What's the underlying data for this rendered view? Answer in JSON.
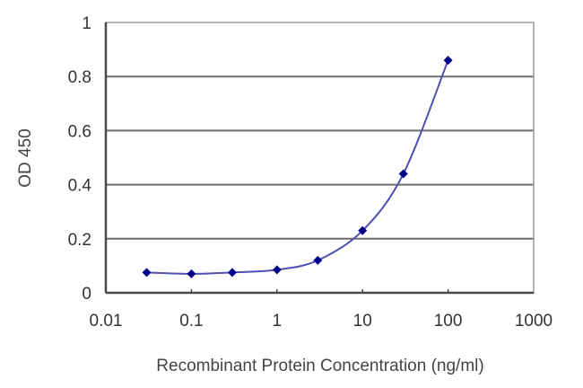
{
  "chart_data": {
    "type": "line",
    "title": "",
    "xlabel": "Recombinant Protein Concentration (ng/ml)",
    "ylabel": "OD 450",
    "xscale": "log",
    "xlim": [
      0.01,
      1000
    ],
    "ylim": [
      0,
      1
    ],
    "x_ticks": [
      "0.01",
      "0.1",
      "1",
      "10",
      "100",
      "1000"
    ],
    "y_ticks": [
      "0",
      "0.2",
      "0.4",
      "0.6",
      "0.8",
      "1"
    ],
    "grid": "horizontal",
    "legend": null,
    "series": [
      {
        "name": "OD 450",
        "color": "#00008B",
        "line_color": "#5050B0",
        "marker": "diamond",
        "x": [
          0.03,
          0.1,
          0.3,
          1,
          3,
          10,
          30,
          100
        ],
        "y": [
          0.075,
          0.07,
          0.075,
          0.085,
          0.12,
          0.23,
          0.44,
          0.86
        ]
      }
    ]
  },
  "colors": {
    "grid": "#6e6e6e",
    "axis": "#4a4a4a",
    "marker": "#00008B",
    "line": "#5050B0",
    "text": "#333333"
  }
}
